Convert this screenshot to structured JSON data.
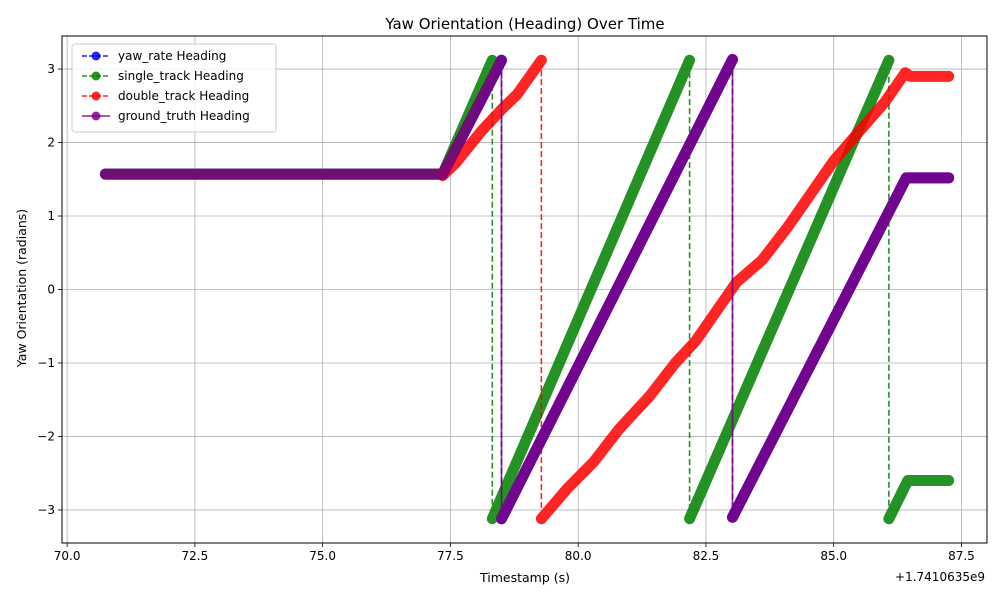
{
  "chart_data": {
    "type": "line",
    "title": "Yaw Orientation (Heading) Over Time",
    "xlabel": "Timestamp (s)",
    "ylabel": "Yaw Orientation (radians)",
    "x_offset_label": "+1.7410635e9",
    "xlim": [
      69.9,
      88.0
    ],
    "ylim": [
      -3.45,
      3.45
    ],
    "x_ticks": [
      70.0,
      72.5,
      75.0,
      77.5,
      80.0,
      82.5,
      85.0,
      87.5
    ],
    "x_tick_labels": [
      "70.0",
      "72.5",
      "75.0",
      "77.5",
      "80.0",
      "82.5",
      "85.0",
      "87.5"
    ],
    "y_ticks": [
      -3,
      -2,
      -1,
      0,
      1,
      2,
      3
    ],
    "y_tick_labels": [
      "−3",
      "−2",
      "−1",
      "0",
      "1",
      "2",
      "3"
    ],
    "grid": true,
    "legend_position": "top-left",
    "series": [
      {
        "name": "yaw_rate Heading",
        "color": "#0000ee",
        "linestyle": "dashed",
        "marker": "circle",
        "segments": [
          [
            [
              70.75,
              1.571
            ],
            [
              77.35,
              1.571
            ],
            [
              78.5,
              3.12
            ]
          ],
          [
            [
              78.5,
              -3.12
            ],
            [
              83.02,
              3.13
            ]
          ],
          [
            [
              83.02,
              -3.1
            ],
            [
              86.42,
              1.52
            ],
            [
              87.25,
              1.52
            ]
          ]
        ]
      },
      {
        "name": "single_track Heading",
        "color": "#008000",
        "linestyle": "dashed",
        "marker": "circle",
        "segments": [
          [
            [
              70.75,
              1.571
            ],
            [
              77.35,
              1.571
            ],
            [
              78.32,
              3.12
            ]
          ],
          [
            [
              78.32,
              -3.12
            ],
            [
              82.18,
              3.12
            ]
          ],
          [
            [
              82.18,
              -3.12
            ],
            [
              86.08,
              3.12
            ]
          ],
          [
            [
              86.08,
              -3.12
            ],
            [
              86.45,
              -2.6
            ],
            [
              87.25,
              -2.6
            ]
          ]
        ]
      },
      {
        "name": "double_track Heading",
        "color": "#ff0000",
        "linestyle": "dashed",
        "marker": "circle",
        "segments": [
          [
            [
              77.35,
              1.55
            ],
            [
              77.6,
              1.72
            ],
            [
              78.1,
              2.15
            ],
            [
              78.5,
              2.45
            ],
            [
              78.8,
              2.65
            ],
            [
              79.28,
              3.12
            ]
          ],
          [
            [
              79.28,
              -3.12
            ],
            [
              79.8,
              -2.7
            ],
            [
              80.3,
              -2.35
            ],
            [
              80.8,
              -1.9
            ],
            [
              81.4,
              -1.45
            ],
            [
              81.9,
              -1.0
            ],
            [
              82.3,
              -0.7
            ],
            [
              82.7,
              -0.3
            ],
            [
              83.1,
              0.1
            ],
            [
              83.6,
              0.4
            ],
            [
              84.1,
              0.85
            ],
            [
              84.6,
              1.35
            ],
            [
              85.0,
              1.75
            ],
            [
              85.5,
              2.15
            ],
            [
              86.0,
              2.55
            ],
            [
              86.4,
              2.95
            ],
            [
              86.5,
              2.9
            ],
            [
              87.25,
              2.9
            ]
          ]
        ]
      },
      {
        "name": "ground_truth Heading",
        "color": "#800080",
        "linestyle": "solid",
        "marker": "circle",
        "segments": [
          [
            [
              70.75,
              1.571
            ],
            [
              77.35,
              1.571
            ],
            [
              78.5,
              3.12
            ]
          ],
          [
            [
              78.5,
              -3.12
            ],
            [
              83.02,
              3.13
            ]
          ],
          [
            [
              83.02,
              -3.1
            ],
            [
              86.42,
              1.52
            ],
            [
              87.25,
              1.52
            ]
          ]
        ]
      }
    ]
  }
}
